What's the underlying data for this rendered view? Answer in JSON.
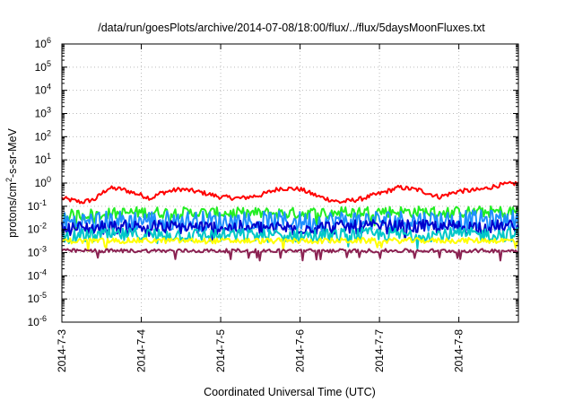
{
  "chart_data": {
    "type": "line",
    "title": "/data/run/goesPlots/archive/2014-07-08/18:00/flux/../flux/5daysMoonFluxes.txt",
    "xlabel": "Coordinated Universal Time (UTC)",
    "ylabel_parts": [
      "protons/cm",
      "2",
      "-s-sr-MeV"
    ],
    "yscale": "log",
    "ylim": [
      1e-06,
      1000000.0
    ],
    "y_ticks": [
      {
        "base": "10",
        "exp": "6"
      },
      {
        "base": "10",
        "exp": "5"
      },
      {
        "base": "10",
        "exp": "4"
      },
      {
        "base": "10",
        "exp": "3"
      },
      {
        "base": "10",
        "exp": "2"
      },
      {
        "base": "10",
        "exp": "1"
      },
      {
        "base": "10",
        "exp": "0"
      },
      {
        "base": "10",
        "exp": "-1"
      },
      {
        "base": "10",
        "exp": "-2"
      },
      {
        "base": "10",
        "exp": "-3"
      },
      {
        "base": "10",
        "exp": "-4"
      },
      {
        "base": "10",
        "exp": "-5"
      },
      {
        "base": "10",
        "exp": "-6"
      }
    ],
    "x_ticks": [
      "2014-7-3",
      "2014-7-4",
      "2014-7-5",
      "2014-7-6",
      "2014-7-7",
      "2014-7-8"
    ],
    "x_start": "2014-07-03T00:00",
    "x_end": "2014-07-08T18:00",
    "grid": true,
    "legend": "none",
    "series": [
      {
        "color": "#ff0000",
        "noise": 0.1,
        "x": [
          "2014-07-03T00:00",
          "2014-07-03T06:00",
          "2014-07-03T10:00",
          "2014-07-03T12:00",
          "2014-07-03T14:00",
          "2014-07-03T18:00",
          "2014-07-04T00:00",
          "2014-07-04T03:00",
          "2014-07-04T06:00",
          "2014-07-04T12:00",
          "2014-07-04T18:00",
          "2014-07-05T00:00",
          "2014-07-05T06:00",
          "2014-07-05T12:00",
          "2014-07-05T18:00",
          "2014-07-06T00:00",
          "2014-07-06T06:00",
          "2014-07-06T12:00",
          "2014-07-06T18:00",
          "2014-07-07T00:00",
          "2014-07-07T06:00",
          "2014-07-07T12:00",
          "2014-07-07T18:00",
          "2014-07-08T00:00",
          "2014-07-08T06:00",
          "2014-07-08T12:00",
          "2014-07-08T18:00"
        ],
        "y": [
          0.22,
          0.15,
          0.2,
          0.35,
          0.6,
          0.55,
          0.3,
          0.22,
          0.38,
          0.55,
          0.4,
          0.25,
          0.22,
          0.3,
          0.6,
          0.55,
          0.25,
          0.15,
          0.2,
          0.35,
          0.65,
          0.5,
          0.25,
          0.45,
          0.5,
          0.8,
          1.0
        ]
      },
      {
        "color": "#22ee22",
        "noise": 0.25,
        "x": [
          "2014-07-03T00:00",
          "2014-07-04T00:00",
          "2014-07-05T00:00",
          "2014-07-06T00:00",
          "2014-07-07T00:00",
          "2014-07-08T00:00",
          "2014-07-08T18:00"
        ],
        "y": [
          0.04,
          0.055,
          0.05,
          0.05,
          0.06,
          0.055,
          0.06
        ]
      },
      {
        "color": "#1e90ff",
        "noise": 0.45,
        "x": [
          "2014-07-03T00:00",
          "2014-07-04T00:00",
          "2014-07-05T00:00",
          "2014-07-06T00:00",
          "2014-07-07T00:00",
          "2014-07-08T00:00",
          "2014-07-08T18:00"
        ],
        "y": [
          0.02,
          0.025,
          0.022,
          0.022,
          0.025,
          0.024,
          0.025
        ]
      },
      {
        "color": "#0000cc",
        "noise": 0.3,
        "x": [
          "2014-07-03T00:00",
          "2014-07-04T00:00",
          "2014-07-05T00:00",
          "2014-07-06T00:00",
          "2014-07-07T00:00",
          "2014-07-08T00:00",
          "2014-07-08T18:00"
        ],
        "y": [
          0.011,
          0.013,
          0.012,
          0.012,
          0.013,
          0.013,
          0.013
        ]
      },
      {
        "color": "#00c8c8",
        "noise": 0.3,
        "x": [
          "2014-07-03T00:00",
          "2014-07-04T00:00",
          "2014-07-05T00:00",
          "2014-07-06T00:00",
          "2014-07-07T00:00",
          "2014-07-08T00:00",
          "2014-07-08T18:00"
        ],
        "y": [
          0.005,
          0.006,
          0.0055,
          0.0055,
          0.006,
          0.006,
          0.006
        ]
      },
      {
        "color": "#ffff00",
        "noise": 0.12,
        "x": [
          "2014-07-03T00:00",
          "2014-07-04T00:00",
          "2014-07-05T00:00",
          "2014-07-06T00:00",
          "2014-07-07T00:00",
          "2014-07-08T00:00",
          "2014-07-08T18:00"
        ],
        "y": [
          0.0032,
          0.0033,
          0.0032,
          0.0032,
          0.0033,
          0.0033,
          0.0033
        ]
      },
      {
        "color": "#8b2252",
        "noise": 0.08,
        "x": [
          "2014-07-03T00:00",
          "2014-07-04T00:00",
          "2014-07-05T00:00",
          "2014-07-06T00:00",
          "2014-07-07T00:00",
          "2014-07-08T00:00",
          "2014-07-08T18:00"
        ],
        "y": [
          0.0012,
          0.0012,
          0.0012,
          0.0012,
          0.0012,
          0.0012,
          0.0012
        ]
      }
    ]
  }
}
